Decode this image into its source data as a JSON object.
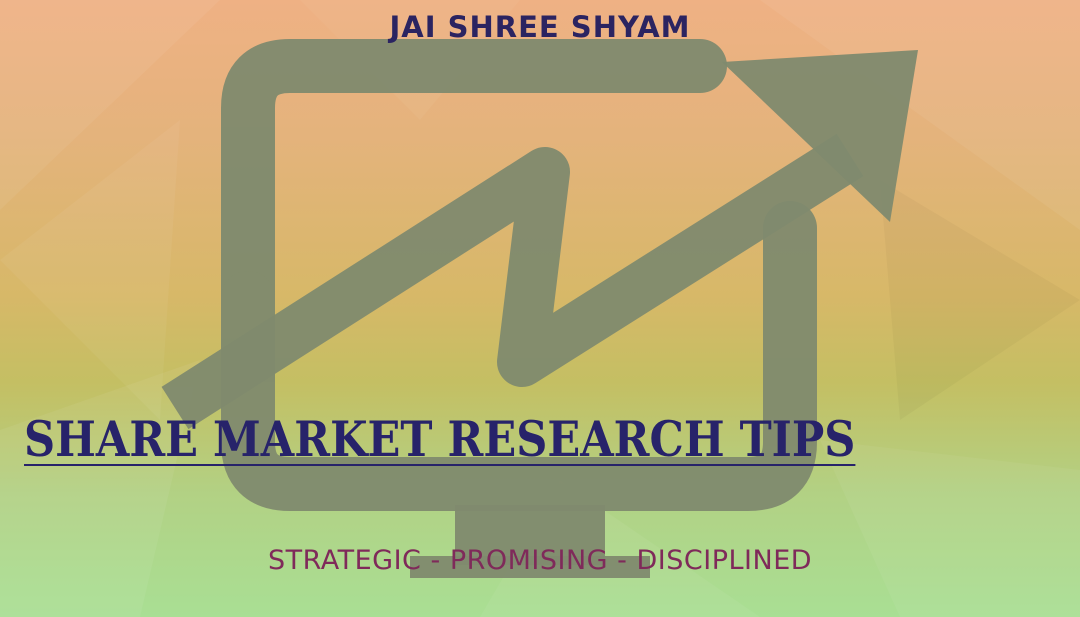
{
  "banner": {
    "top_heading": "JAI SHREE SHYAM",
    "main_title": "SHARE MARKET RESEARCH TIPS",
    "tagline": "STRATEGIC - PROMISING - DISCIPLINED"
  },
  "logo": {
    "icon": "monitor-with-rising-arrow-icon",
    "color": "#7f8a6e"
  },
  "colors": {
    "heading": "#2b2461",
    "title": "#27236a",
    "tagline": "#7f2a5a",
    "background_top": "#efb184",
    "background_bottom": "#a9df94"
  }
}
